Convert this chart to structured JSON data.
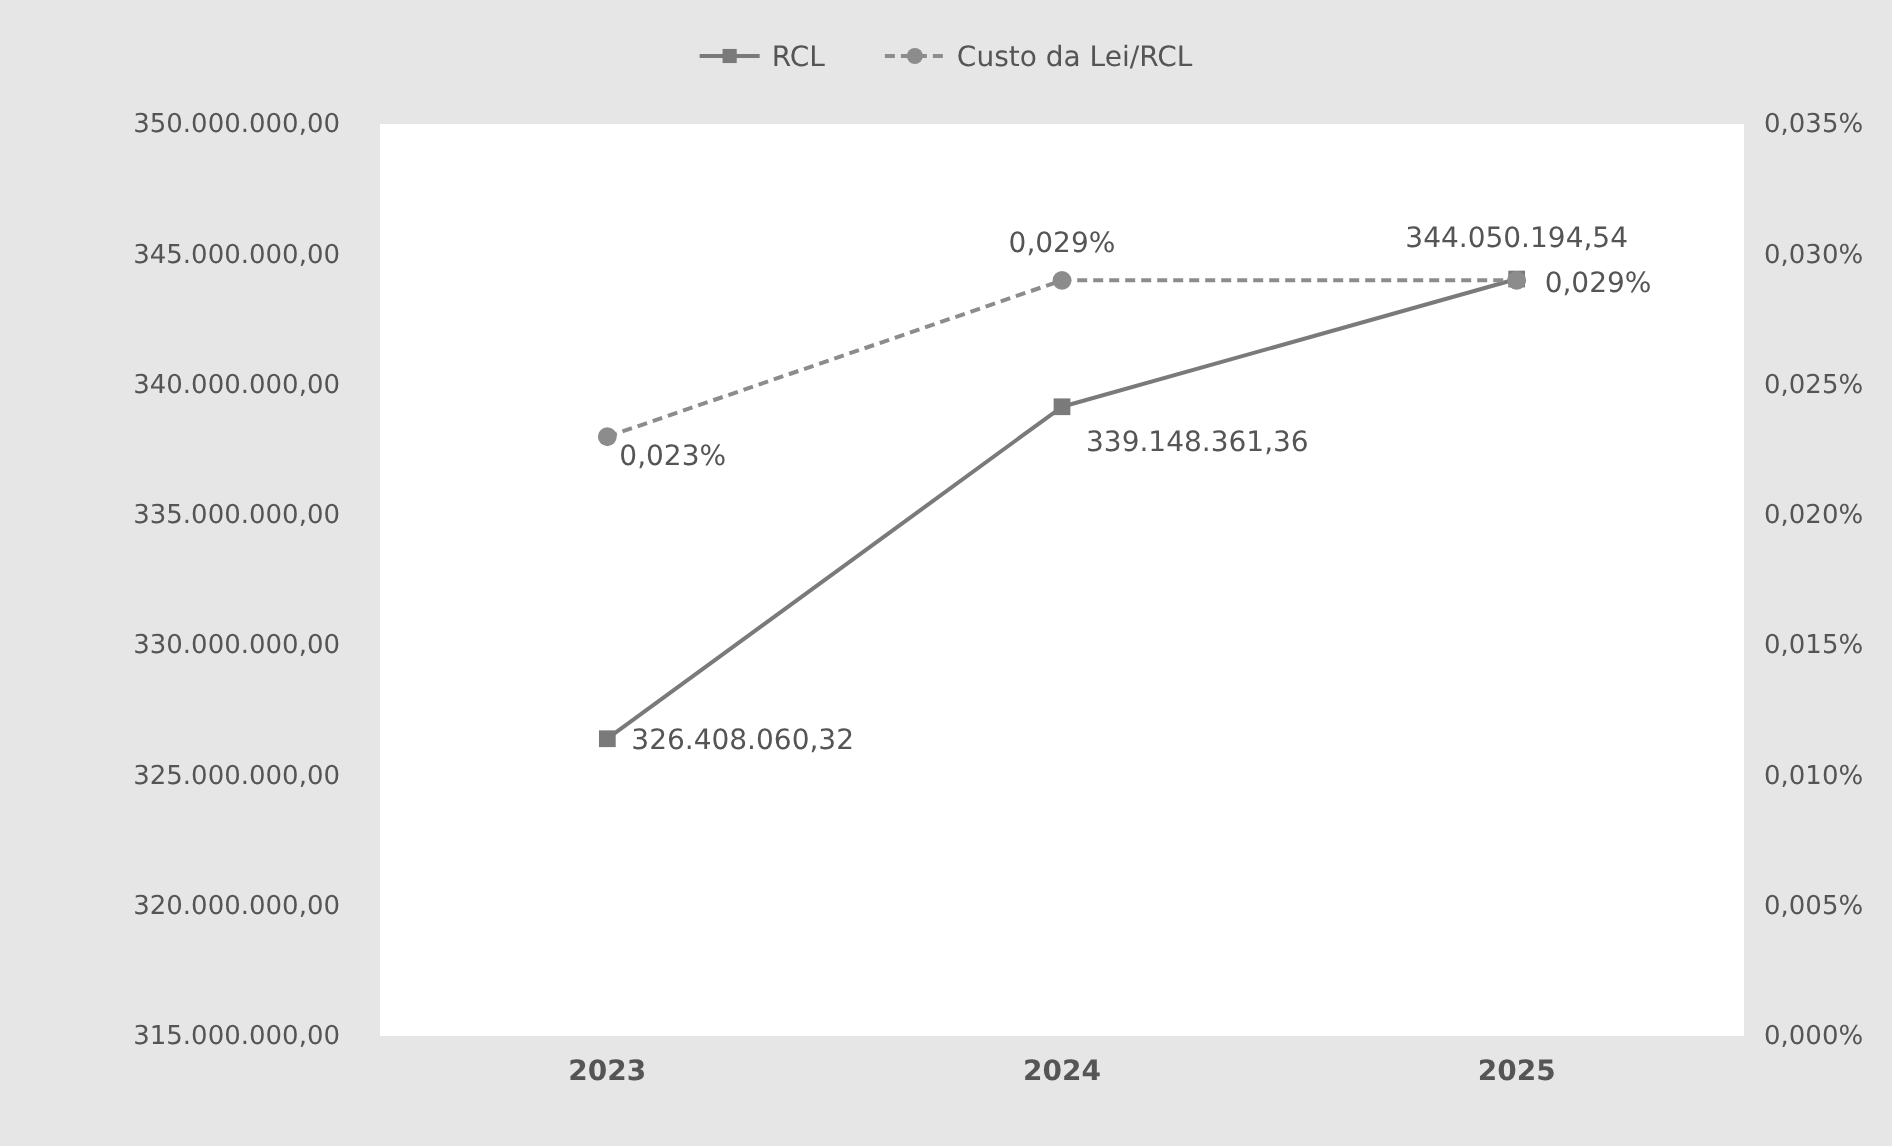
{
  "chart_data": {
    "type": "line",
    "categories": [
      "2023",
      "2024",
      "2025"
    ],
    "series": [
      {
        "name": "RCL",
        "color": "#7a7a7a",
        "marker": "square",
        "line_style": "solid",
        "values": [
          326408060.32,
          339148361.36,
          344050194.54
        ],
        "value_labels": [
          "326.408.060,32",
          "339.148.361,36",
          "344.050.194,54"
        ]
      },
      {
        "name": "Custo da Lei/RCL",
        "color": "#8c8c8c",
        "marker": "circle",
        "line_style": "dashed",
        "axis": "y2",
        "values": [
          0.023,
          0.029,
          0.029
        ],
        "value_labels": [
          "0,023%",
          "0,029%",
          "0,029%"
        ]
      }
    ],
    "ylim": [
      315000000,
      350000000
    ],
    "yticks": [
      {
        "value": 315000000,
        "label": "315.000.000,00"
      },
      {
        "value": 320000000,
        "label": "320.000.000,00"
      },
      {
        "value": 325000000,
        "label": "325.000.000,00"
      },
      {
        "value": 330000000,
        "label": "330.000.000,00"
      },
      {
        "value": 335000000,
        "label": "335.000.000,00"
      },
      {
        "value": 340000000,
        "label": "340.000.000,00"
      },
      {
        "value": 345000000,
        "label": "345.000.000,00"
      },
      {
        "value": 350000000,
        "label": "350.000.000,00"
      }
    ],
    "y2lim": [
      0,
      0.035
    ],
    "y2ticks": [
      {
        "value": 0,
        "label": "0,000%"
      },
      {
        "value": 0.005,
        "label": "0,005%"
      },
      {
        "value": 0.01,
        "label": "0,010%"
      },
      {
        "value": 0.015,
        "label": "0,015%"
      },
      {
        "value": 0.02,
        "label": "0,020%"
      },
      {
        "value": 0.025,
        "label": "0,025%"
      },
      {
        "value": 0.03,
        "label": "0,030%"
      },
      {
        "value": 0.035,
        "label": "0,035%"
      }
    ],
    "grid": false,
    "legend": "top"
  }
}
